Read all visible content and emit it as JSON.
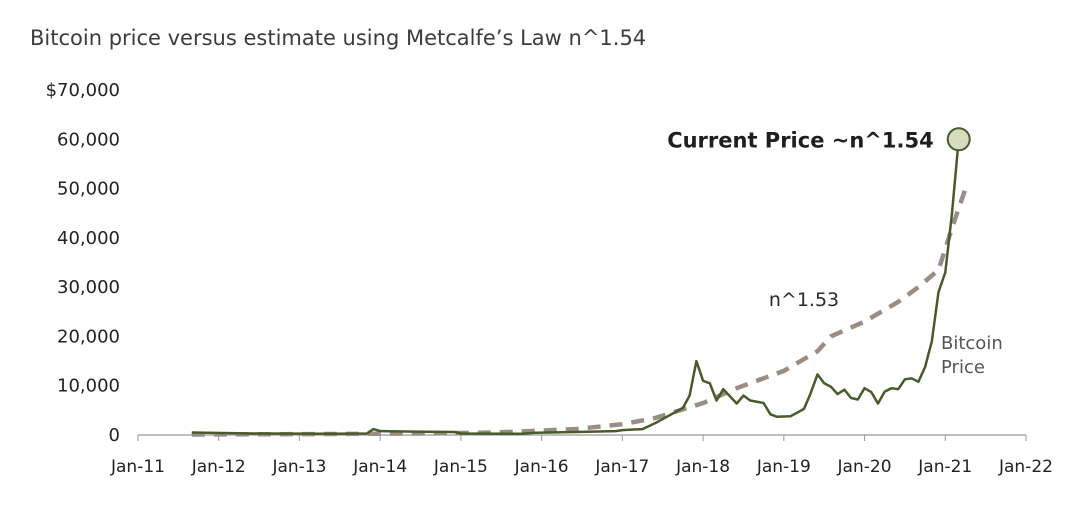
{
  "chart_data": {
    "type": "line",
    "title": "Bitcoin price versus estimate using Metcalfe’s Law n^1.54",
    "xlabel": "",
    "ylabel": "",
    "x_range": [
      "2011-01",
      "2022-01"
    ],
    "ylim": [
      0,
      70000
    ],
    "y_ticks": [
      {
        "value": 0,
        "label": "0"
      },
      {
        "value": 10000,
        "label": "10,000"
      },
      {
        "value": 20000,
        "label": "20,000"
      },
      {
        "value": 30000,
        "label": "30,000"
      },
      {
        "value": 40000,
        "label": "40,000"
      },
      {
        "value": 50000,
        "label": "50,000"
      },
      {
        "value": 60000,
        "label": "60,000"
      },
      {
        "value": 70000,
        "label": "$70,000"
      }
    ],
    "x_ticks": [
      {
        "value": "2011-01",
        "label": "Jan-11"
      },
      {
        "value": "2012-01",
        "label": "Jan-12"
      },
      {
        "value": "2013-01",
        "label": "Jan-13"
      },
      {
        "value": "2014-01",
        "label": "Jan-14"
      },
      {
        "value": "2015-01",
        "label": "Jan-15"
      },
      {
        "value": "2016-01",
        "label": "Jan-16"
      },
      {
        "value": "2017-01",
        "label": "Jan-17"
      },
      {
        "value": "2018-01",
        "label": "Jan-18"
      },
      {
        "value": "2019-01",
        "label": "Jan-19"
      },
      {
        "value": "2020-01",
        "label": "Jan-20"
      },
      {
        "value": "2021-01",
        "label": "Jan-21"
      },
      {
        "value": "2022-01",
        "label": "Jan-22"
      }
    ],
    "grid": false,
    "series": [
      {
        "name": "Bitcoin Price",
        "color": "#4a5a2a",
        "style": "solid",
        "points": [
          [
            "2011-09",
            500
          ],
          [
            "2012-06",
            300
          ],
          [
            "2013-06",
            250
          ],
          [
            "2013-11",
            300
          ],
          [
            "2013-12",
            1200
          ],
          [
            "2014-01",
            800
          ],
          [
            "2014-06",
            700
          ],
          [
            "2014-12",
            600
          ],
          [
            "2015-01",
            300
          ],
          [
            "2015-10",
            250
          ],
          [
            "2015-12",
            450
          ],
          [
            "2016-06",
            600
          ],
          [
            "2016-12",
            800
          ],
          [
            "2017-01",
            1000
          ],
          [
            "2017-04",
            1200
          ],
          [
            "2017-06",
            2500
          ],
          [
            "2017-08",
            4000
          ],
          [
            "2017-10",
            5500
          ],
          [
            "2017-11",
            8000
          ],
          [
            "2017-12",
            15000
          ],
          [
            "2018-01",
            11000
          ],
          [
            "2018-02",
            10500
          ],
          [
            "2018-03",
            7000
          ],
          [
            "2018-04",
            9300
          ],
          [
            "2018-06",
            6400
          ],
          [
            "2018-07",
            8000
          ],
          [
            "2018-08",
            7000
          ],
          [
            "2018-10",
            6500
          ],
          [
            "2018-11",
            4200
          ],
          [
            "2018-12",
            3700
          ],
          [
            "2019-02",
            3800
          ],
          [
            "2019-04",
            5300
          ],
          [
            "2019-05",
            8500
          ],
          [
            "2019-06",
            12300
          ],
          [
            "2019-07",
            10500
          ],
          [
            "2019-08",
            9800
          ],
          [
            "2019-09",
            8300
          ],
          [
            "2019-10",
            9200
          ],
          [
            "2019-11",
            7500
          ],
          [
            "2019-12",
            7200
          ],
          [
            "2020-01",
            9500
          ],
          [
            "2020-02",
            8700
          ],
          [
            "2020-03",
            6400
          ],
          [
            "2020-04",
            8800
          ],
          [
            "2020-05",
            9500
          ],
          [
            "2020-06",
            9300
          ],
          [
            "2020-07",
            11300
          ],
          [
            "2020-08",
            11500
          ],
          [
            "2020-09",
            10800
          ],
          [
            "2020-10",
            13800
          ],
          [
            "2020-11",
            19000
          ],
          [
            "2020-12",
            29000
          ],
          [
            "2021-01",
            33000
          ],
          [
            "2021-02",
            45000
          ],
          [
            "2021-03",
            60000
          ]
        ]
      },
      {
        "name": "n^1.53",
        "color": "#9a8e84",
        "style": "dashed",
        "points": [
          [
            "2011-09",
            100
          ],
          [
            "2012-06",
            150
          ],
          [
            "2013-06",
            200
          ],
          [
            "2014-06",
            300
          ],
          [
            "2015-06",
            500
          ],
          [
            "2016-01",
            900
          ],
          [
            "2016-06",
            1200
          ],
          [
            "2017-01",
            2200
          ],
          [
            "2017-06",
            3500
          ],
          [
            "2018-01",
            6500
          ],
          [
            "2018-06",
            9500
          ],
          [
            "2019-01",
            13000
          ],
          [
            "2019-06",
            17000
          ],
          [
            "2019-08",
            20000
          ],
          [
            "2020-01",
            23000
          ],
          [
            "2020-06",
            27000
          ],
          [
            "2020-09",
            30000
          ],
          [
            "2020-12",
            33500
          ],
          [
            "2021-02",
            42000
          ],
          [
            "2021-04",
            50000
          ]
        ]
      }
    ],
    "annotations": {
      "current_price": "Current Price ~n^1.54",
      "estimate_label": "n^1.53",
      "bitcoin_label_line1": "Bitcoin",
      "bitcoin_label_line2": "Price"
    },
    "marker": {
      "x": "2021-03",
      "y": 60000,
      "fill": "#d7dcc0",
      "stroke": "#4a5a2a"
    }
  }
}
